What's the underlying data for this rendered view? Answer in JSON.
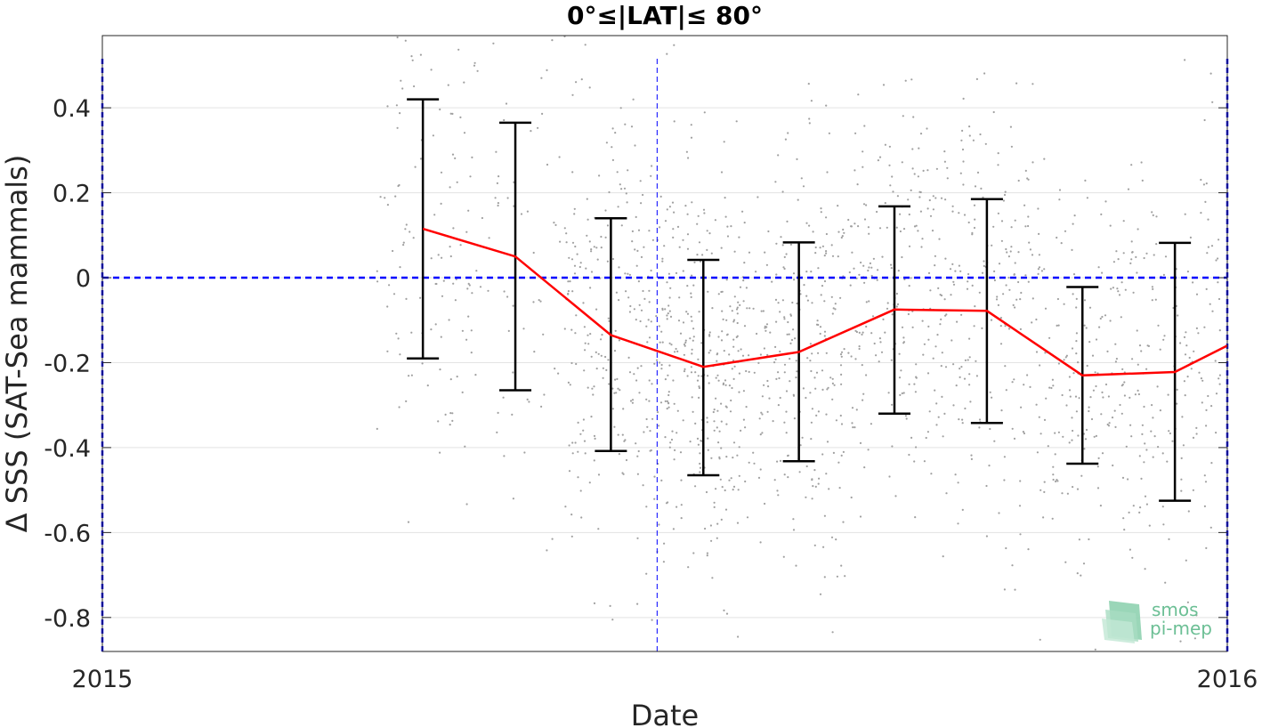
{
  "chart_data": {
    "type": "scatter",
    "title": "0°≤|LAT|≤ 80°",
    "xlabel": "Date",
    "ylabel": "Δ SSS (SAT-Sea mammals)",
    "x_ticks": [
      {
        "value": "2015-01-01",
        "label": "2015"
      },
      {
        "value": "2016-01-01",
        "label": "2016"
      }
    ],
    "y_ticks": [
      0.4,
      0.2,
      0,
      -0.2,
      -0.4,
      -0.6,
      -0.8
    ],
    "y_tick_labels": [
      "0.4",
      "0.2",
      "0",
      "-0.2",
      "-0.4",
      "-0.6",
      "-0.8"
    ],
    "xlim": [
      "2015-01-01",
      "2016-01-01"
    ],
    "ylim": [
      -0.88,
      0.57
    ],
    "grid": true,
    "reference_lines": {
      "zero_line_y": 0,
      "vertical_dates": [
        "2015-01-01",
        "2015-06-30",
        "2016-01-01"
      ],
      "color": "#0000ff"
    },
    "monthly_mean": {
      "color": "#ff0000",
      "x": [
        "2015-04-15",
        "2015-05-15",
        "2015-06-15",
        "2015-07-15",
        "2015-08-15",
        "2015-09-15",
        "2015-10-15",
        "2015-11-15",
        "2015-12-15",
        "2016-01-01"
      ],
      "y": [
        0.115,
        0.05,
        -0.135,
        -0.21,
        -0.175,
        -0.075,
        -0.078,
        -0.23,
        -0.222,
        -0.16
      ]
    },
    "error_bars": {
      "color": "#000000",
      "x": [
        "2015-04-15",
        "2015-05-15",
        "2015-06-15",
        "2015-07-15",
        "2015-08-15",
        "2015-09-15",
        "2015-10-15",
        "2015-11-15",
        "2015-12-15"
      ],
      "upper": [
        0.42,
        0.365,
        0.14,
        0.042,
        0.083,
        0.168,
        0.185,
        -0.022,
        0.082
      ],
      "lower": [
        -0.19,
        -0.265,
        -0.408,
        -0.465,
        -0.432,
        -0.32,
        -0.342,
        -0.438,
        -0.525
      ]
    },
    "scatter": {
      "color": "#a0a0a0",
      "description_note": "",
      "clusters": [
        {
          "date": "2015-04-15",
          "mean": 0.1,
          "sd": 0.28,
          "n": 110
        },
        {
          "date": "2015-05-15",
          "mean": 0.05,
          "sd": 0.3,
          "n": 70
        },
        {
          "date": "2015-06-15",
          "mean": -0.14,
          "sd": 0.26,
          "n": 240
        },
        {
          "date": "2015-07-15",
          "mean": -0.21,
          "sd": 0.24,
          "n": 330
        },
        {
          "date": "2015-08-15",
          "mean": -0.18,
          "sd": 0.25,
          "n": 250
        },
        {
          "date": "2015-09-15",
          "mean": -0.08,
          "sd": 0.24,
          "n": 210
        },
        {
          "date": "2015-10-15",
          "mean": -0.08,
          "sd": 0.25,
          "n": 200
        },
        {
          "date": "2015-11-15",
          "mean": -0.23,
          "sd": 0.22,
          "n": 180
        },
        {
          "date": "2015-12-15",
          "mean": -0.22,
          "sd": 0.27,
          "n": 170
        }
      ]
    }
  },
  "logo": {
    "line1": "smos",
    "line2": "pi-mep",
    "color": "#6cbf95"
  }
}
